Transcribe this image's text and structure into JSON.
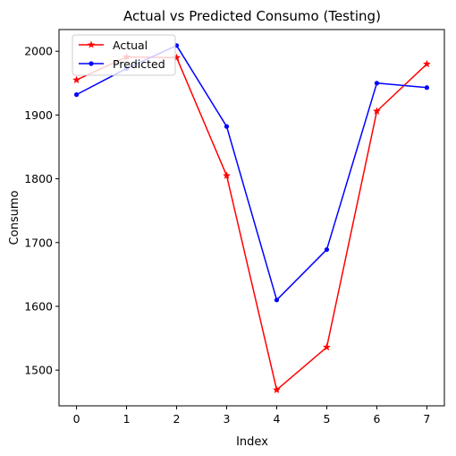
{
  "chart_data": {
    "type": "line",
    "title": "Actual vs Predicted Consumo (Testing)",
    "xlabel": "Index",
    "ylabel": "Consumo",
    "x": [
      0,
      1,
      2,
      3,
      4,
      5,
      6,
      7
    ],
    "xlim": [
      -0.35,
      7.35
    ],
    "ylim": [
      1444,
      2034
    ],
    "xticks": [
      "0",
      "1",
      "2",
      "3",
      "4",
      "5",
      "6",
      "7"
    ],
    "yticks": [
      "1500",
      "1600",
      "1700",
      "1800",
      "1900",
      "2000"
    ],
    "grid": false,
    "legend_position": "top-left",
    "series": [
      {
        "name": "Actual",
        "color": "#ff0000",
        "marker": "star",
        "values": [
          1955,
          1991,
          1990,
          1805,
          1469,
          1536,
          1906,
          1980
        ]
      },
      {
        "name": "Predicted",
        "color": "#0000ff",
        "marker": "dot",
        "values": [
          1932,
          1973,
          2009,
          1882,
          1610,
          1689,
          1950,
          1943
        ]
      }
    ]
  }
}
